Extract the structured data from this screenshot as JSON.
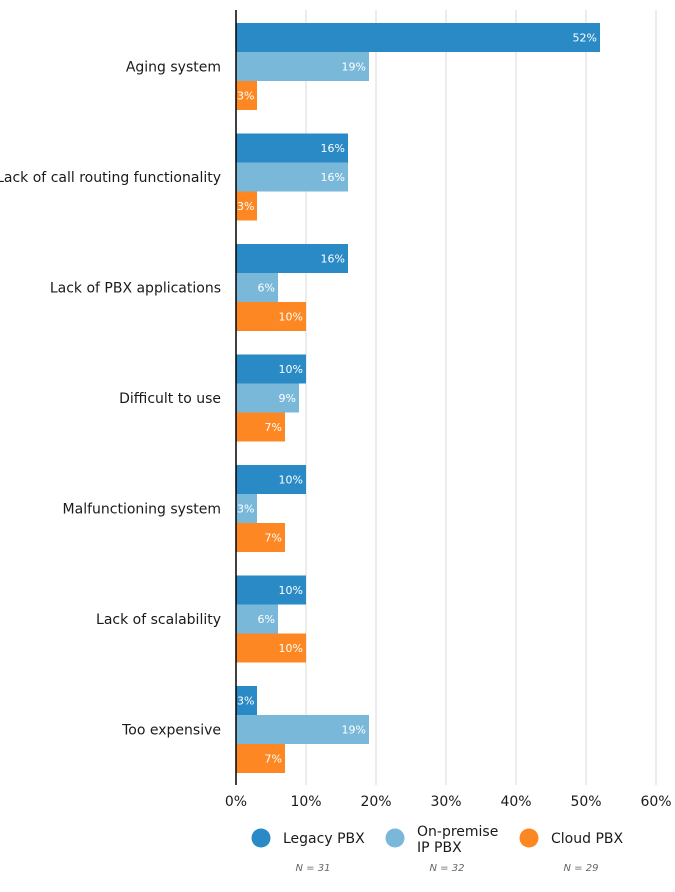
{
  "chart_data": {
    "type": "bar",
    "orientation": "horizontal",
    "title": "",
    "xlabel": "",
    "ylabel": "",
    "xlim": [
      0,
      60
    ],
    "x_ticks": [
      0,
      10,
      20,
      30,
      40,
      50,
      60
    ],
    "x_tick_suffix": "%",
    "grid": true,
    "legend_position": "bottom",
    "categories": [
      "Aging system",
      "Lack of call routing functionality",
      "Lack of PBX applications",
      "Difficult to use",
      "Malfunctioning system",
      "Lack of scalability",
      "Too expensive"
    ],
    "series": [
      {
        "name": "Legacy PBX",
        "name_lines": [
          "Legacy PBX"
        ],
        "n_label": "N = 31",
        "color": "#2a8ac6",
        "values": [
          52,
          16,
          16,
          10,
          10,
          10,
          3
        ]
      },
      {
        "name": "On-premise IP PBX",
        "name_lines": [
          "On-premise",
          "IP PBX"
        ],
        "n_label": "N = 32",
        "color": "#7ab8da",
        "values": [
          19,
          16,
          6,
          9,
          3,
          6,
          19
        ]
      },
      {
        "name": "Cloud PBX",
        "name_lines": [
          "Cloud PBX"
        ],
        "n_label": "N = 29",
        "color": "#fd8823",
        "values": [
          3,
          3,
          10,
          7,
          7,
          10,
          7
        ]
      }
    ]
  }
}
